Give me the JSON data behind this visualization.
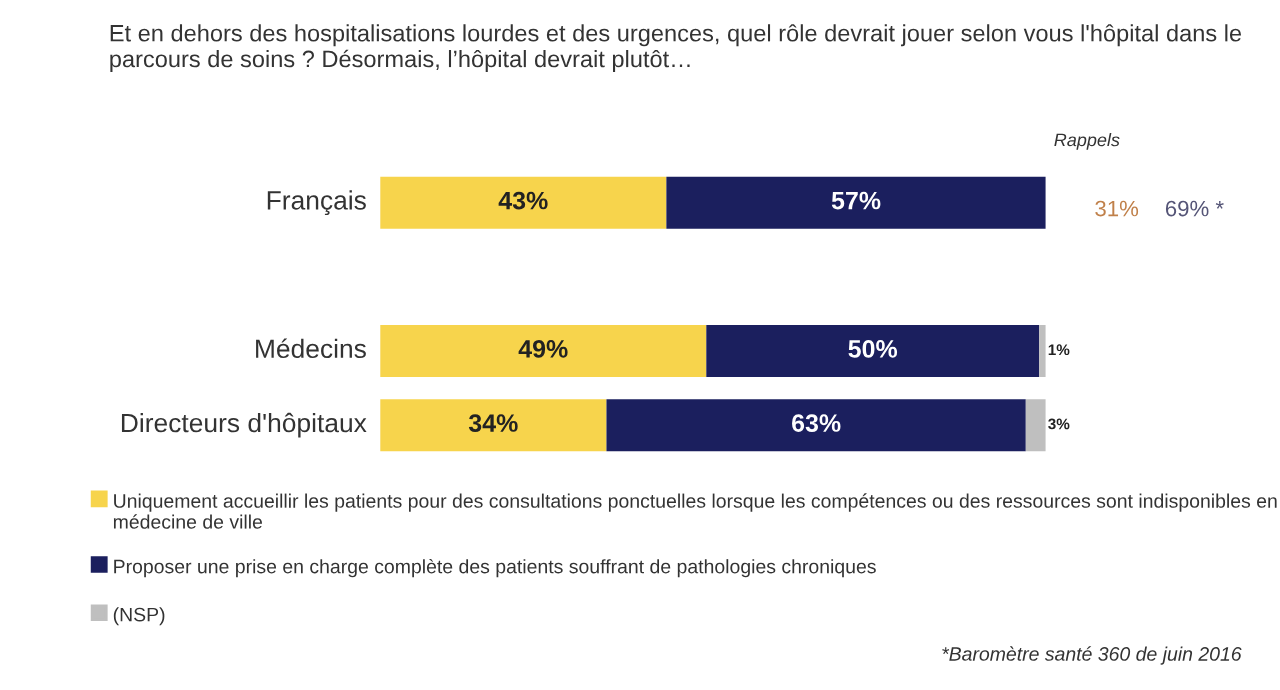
{
  "chart_data": {
    "type": "bar",
    "orientation": "horizontal",
    "stacked": true,
    "title": "Et en dehors des hospitalisations lourdes et des urgences, quel rôle devrait jouer selon vous l'hôpital dans le parcours de soins ? Désormais, l’hôpital devrait plutôt…",
    "categories": [
      "Français",
      null,
      "Médecins",
      "Directeurs d'hôpitaux"
    ],
    "series": [
      {
        "name": "Uniquement accueillir les patients pour des consultations ponctuelles lorsque les compétences ou des ressources sont indisponibles en médecine de ville",
        "color": "#f7d44c",
        "values": [
          43,
          null,
          49,
          34
        ],
        "value_labels": [
          "43%",
          null,
          "49%",
          "34%"
        ]
      },
      {
        "name": "Proposer une prise en charge complète des patients souffrant de pathologies chroniques",
        "color": "#1b1f5e",
        "values": [
          57,
          null,
          50,
          63
        ],
        "value_labels": [
          "57%",
          null,
          "50%",
          "63%"
        ]
      },
      {
        "name": "(NSP)",
        "color": "#bfbfbf",
        "values": [
          null,
          null,
          1,
          3
        ],
        "value_labels": [
          null,
          null,
          "1%",
          "3%"
        ]
      }
    ],
    "xlim": [
      0,
      100
    ],
    "tick_labels": false,
    "grid": false,
    "legend": "bottom",
    "annotations": [
      "Rappels",
      "31%",
      "69% *",
      "*Baromètre santé 360 de juin 2016"
    ]
  }
}
